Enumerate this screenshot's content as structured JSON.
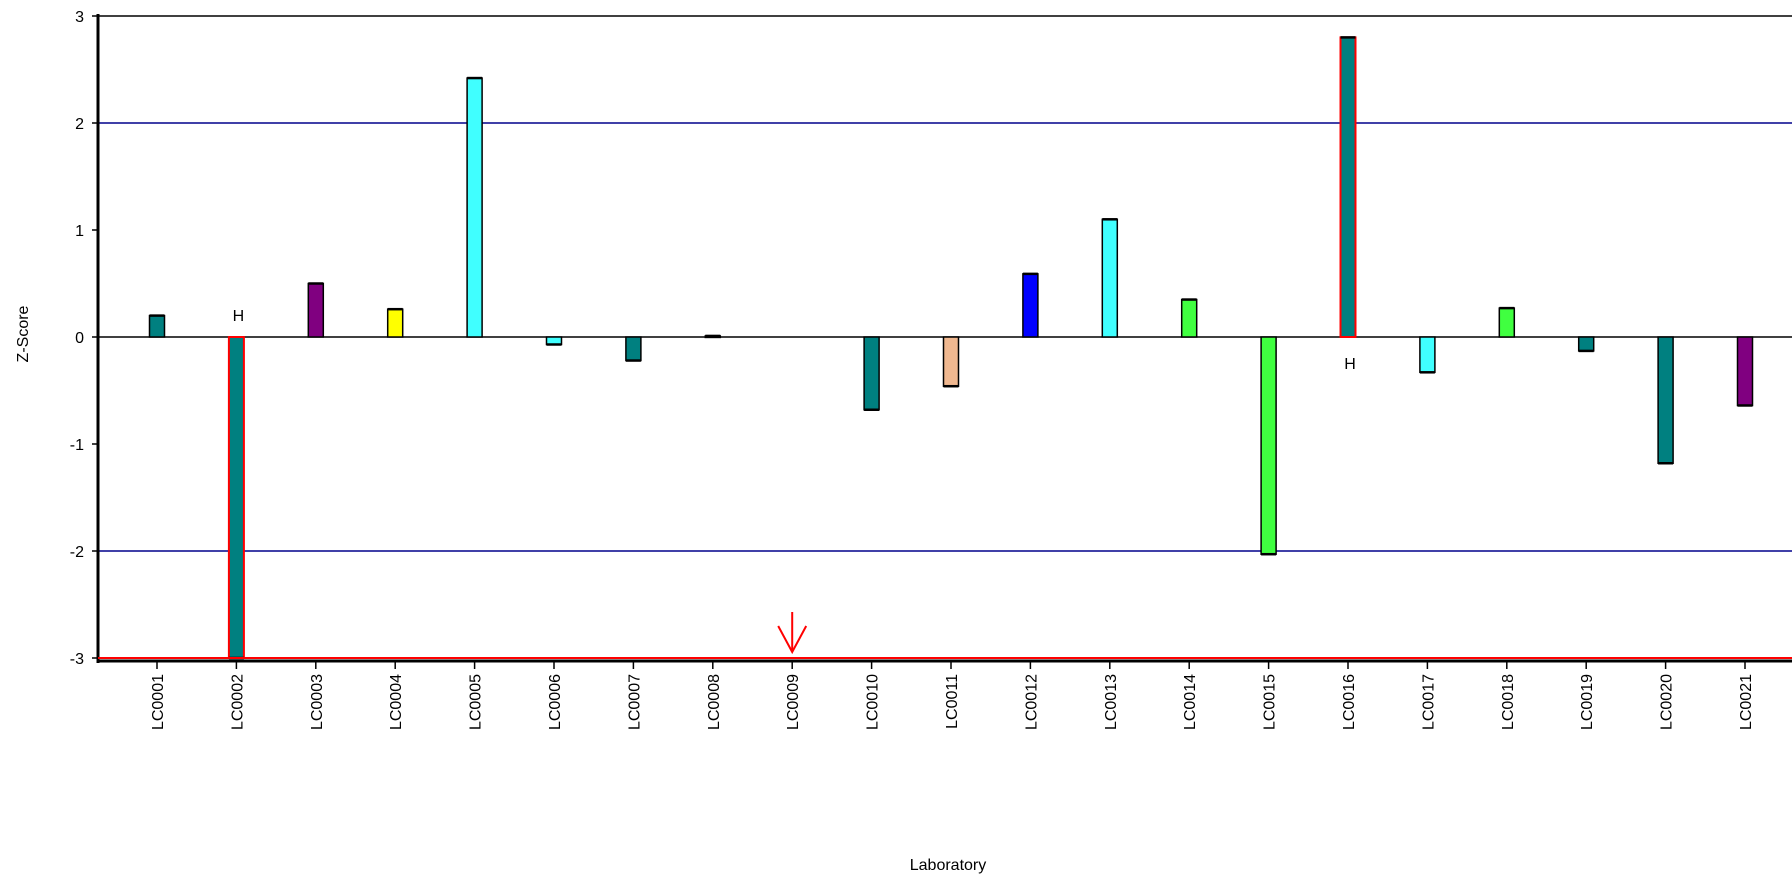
{
  "chart_data": {
    "type": "bar",
    "xlabel": "Laboratory",
    "ylabel": "Z-Score",
    "ylim": [
      -3,
      3
    ],
    "yticks": [
      3,
      2,
      1,
      0,
      -1,
      -2,
      -3
    ],
    "reference_lines": [
      {
        "value": 2,
        "color": "#00008b"
      },
      {
        "value": -2,
        "color": "#00008b"
      }
    ],
    "limit_line": {
      "value": -3,
      "color": "#ff0000"
    },
    "grid": false,
    "categories": [
      "LC0001",
      "LC0002",
      "LC0003",
      "LC0004",
      "LC0005",
      "LC0006",
      "LC0007",
      "LC0008",
      "LC0009",
      "LC0010",
      "LC0011",
      "LC0012",
      "LC0013",
      "LC0014",
      "LC0015",
      "LC0016",
      "LC0017",
      "LC0018",
      "LC0019",
      "LC0020",
      "LC0021"
    ],
    "values": [
      0.2,
      -3.0,
      0.5,
      0.26,
      2.42,
      -0.07,
      -0.22,
      0.01,
      null,
      -0.68,
      -0.46,
      0.59,
      1.1,
      0.35,
      -2.03,
      2.8,
      -0.33,
      0.27,
      -0.13,
      -1.18,
      -0.64
    ],
    "colors": [
      "#008080",
      "#008080",
      "#800080",
      "#ffff00",
      "#40ffff",
      "#40ffff",
      "#008080",
      "#008080",
      "#008080",
      "#008080",
      "#f0b890",
      "#0000ff",
      "#40ffff",
      "#40ff40",
      "#40ff40",
      "#008080",
      "#40ffff",
      "#40ff40",
      "#008080",
      "#008080",
      "#800080"
    ],
    "highlighted": [
      "LC0002",
      "LC0016"
    ],
    "annotations": [
      {
        "category": "LC0002",
        "text": "H"
      },
      {
        "category": "LC0016",
        "text": "H"
      }
    ],
    "marker": {
      "category": "LC0009",
      "symbol": "down-arrow",
      "color": "#ff0000"
    }
  }
}
